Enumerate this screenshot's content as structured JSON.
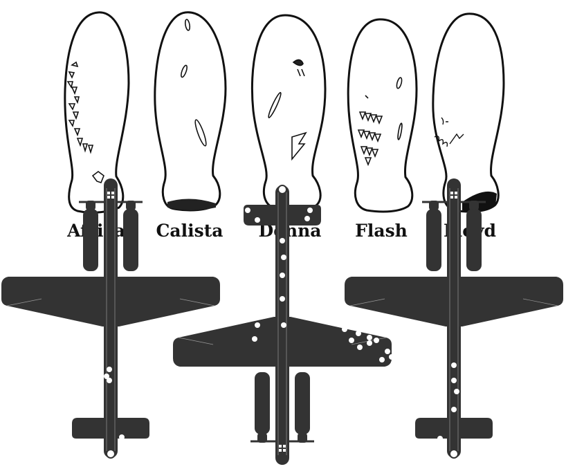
{
  "manatees": [
    {
      "name": "Africa"
    },
    {
      "name": "Calista"
    },
    {
      "name": "Donna"
    },
    {
      "name": "Flash"
    },
    {
      "name": "Floyd"
    }
  ],
  "colors": {
    "ink": "#111111",
    "plane": "#333333",
    "hole": "#ffffff",
    "background": "#ffffff"
  },
  "planes": [
    {
      "name": "plane-left",
      "orientation": "nose-up"
    },
    {
      "name": "plane-center",
      "orientation": "nose-down"
    },
    {
      "name": "plane-right",
      "orientation": "nose-up"
    }
  ]
}
